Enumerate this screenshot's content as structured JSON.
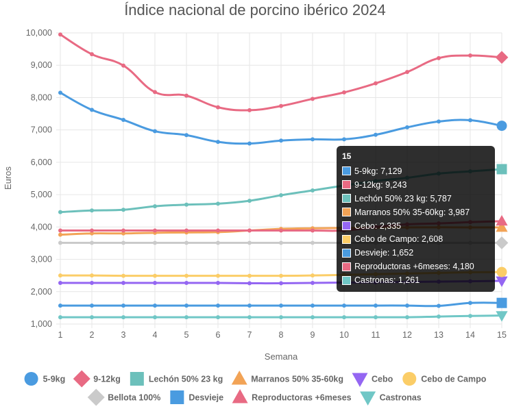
{
  "chart_data": {
    "type": "line",
    "title": "Índice nacional de porcino ibérico 2024",
    "xlabel": "Semana",
    "ylabel": "Euros",
    "x": [
      1,
      2,
      3,
      4,
      5,
      6,
      7,
      8,
      9,
      10,
      11,
      12,
      13,
      14,
      15
    ],
    "x_ticks": [
      "1",
      "2",
      "3",
      "4",
      "5",
      "6",
      "7",
      "8",
      "9",
      "10",
      "11",
      "12",
      "13",
      "14",
      "15"
    ],
    "ylim": [
      1000,
      10000
    ],
    "y_ticks": [
      "1,000",
      "2,000",
      "3,000",
      "4,000",
      "5,000",
      "6,000",
      "7,000",
      "8,000",
      "9,000",
      "10,000"
    ],
    "grid": true,
    "legend_position": "bottom",
    "series": [
      {
        "name": "5-9kg",
        "color": "#4a9be0",
        "marker": "circle",
        "values": [
          8150,
          7620,
          7310,
          6960,
          6840,
          6630,
          6580,
          6670,
          6710,
          6710,
          6850,
          7080,
          7260,
          7300,
          7129
        ]
      },
      {
        "name": "9-12kg",
        "color": "#e86a83",
        "marker": "diamond",
        "values": [
          9950,
          9340,
          8990,
          8170,
          8060,
          7700,
          7610,
          7740,
          7960,
          8160,
          8440,
          8790,
          9220,
          9300,
          9243
        ]
      },
      {
        "name": "Lechón 50% 23 kg",
        "color": "#6cc0bb",
        "marker": "square",
        "values": [
          4460,
          4510,
          4530,
          4640,
          4690,
          4720,
          4810,
          4980,
          5130,
          5280,
          5420,
          5520,
          5650,
          5720,
          5787
        ]
      },
      {
        "name": "Marranos 50% 35-60kg",
        "color": "#f2a356",
        "marker": "triangle",
        "values": [
          3760,
          3800,
          3800,
          3820,
          3830,
          3840,
          3890,
          3940,
          3960,
          3970,
          3980,
          3985,
          3990,
          3987,
          3987
        ]
      },
      {
        "name": "Cebo",
        "color": "#9466f2",
        "marker": "triangle-down",
        "values": [
          2270,
          2270,
          2270,
          2270,
          2270,
          2270,
          2260,
          2260,
          2270,
          2280,
          2290,
          2300,
          2310,
          2320,
          2335
        ]
      },
      {
        "name": "Cebo de Campo",
        "color": "#fbcd67",
        "marker": "circle",
        "values": [
          2500,
          2500,
          2490,
          2490,
          2490,
          2490,
          2490,
          2490,
          2500,
          2520,
          2540,
          2560,
          2580,
          2600,
          2608
        ]
      },
      {
        "name": "Bellota 100%",
        "color": "#cacaca",
        "marker": "diamond",
        "values": [
          3510,
          3510,
          3510,
          3510,
          3510,
          3510,
          3510,
          3510,
          3510,
          3510,
          3510,
          3510,
          3510,
          3510,
          3510
        ]
      },
      {
        "name": "Desvieje",
        "color": "#4a9be0",
        "marker": "square",
        "values": [
          1570,
          1570,
          1570,
          1570,
          1570,
          1570,
          1570,
          1570,
          1570,
          1570,
          1570,
          1570,
          1560,
          1650,
          1652
        ]
      },
      {
        "name": "Reproductoras +6meses",
        "color": "#e86a83",
        "marker": "triangle",
        "values": [
          3890,
          3890,
          3890,
          3890,
          3890,
          3890,
          3890,
          3890,
          3890,
          3890,
          4000,
          4080,
          4110,
          4150,
          4180
        ]
      },
      {
        "name": "Castronas",
        "color": "#70c7c6",
        "marker": "triangle-down",
        "values": [
          1210,
          1210,
          1210,
          1210,
          1210,
          1210,
          1210,
          1210,
          1210,
          1210,
          1210,
          1210,
          1230,
          1250,
          1261
        ]
      }
    ],
    "legend_rows": [
      [
        "5-9kg",
        "9-12kg",
        "Lechón 50% 23 kg",
        "Marranos 50% 35-60kg",
        "Cebo",
        "Cebo de Campo"
      ],
      [
        "Bellota 100%",
        "Desvieje",
        "Reproductoras +6meses",
        "Castronas"
      ]
    ],
    "tooltip": {
      "title": "15",
      "items": [
        {
          "label": "5-9kg: 7,129",
          "color": "#4a9be0"
        },
        {
          "label": "9-12kg: 9,243",
          "color": "#e86a83"
        },
        {
          "label": "Lechón 50% 23 kg: 5,787",
          "color": "#6cc0bb"
        },
        {
          "label": "Marranos 50% 35-60kg: 3,987",
          "color": "#f2a356"
        },
        {
          "label": "Cebo: 2,335",
          "color": "#9466f2"
        },
        {
          "label": "Cebo de Campo: 2,608",
          "color": "#fbcd67"
        },
        {
          "label": "Desvieje: 1,652",
          "color": "#4a9be0"
        },
        {
          "label": "Reproductoras +6meses: 4,180",
          "color": "#e86a83"
        },
        {
          "label": "Castronas: 1,261",
          "color": "#70c7c6"
        }
      ]
    }
  }
}
